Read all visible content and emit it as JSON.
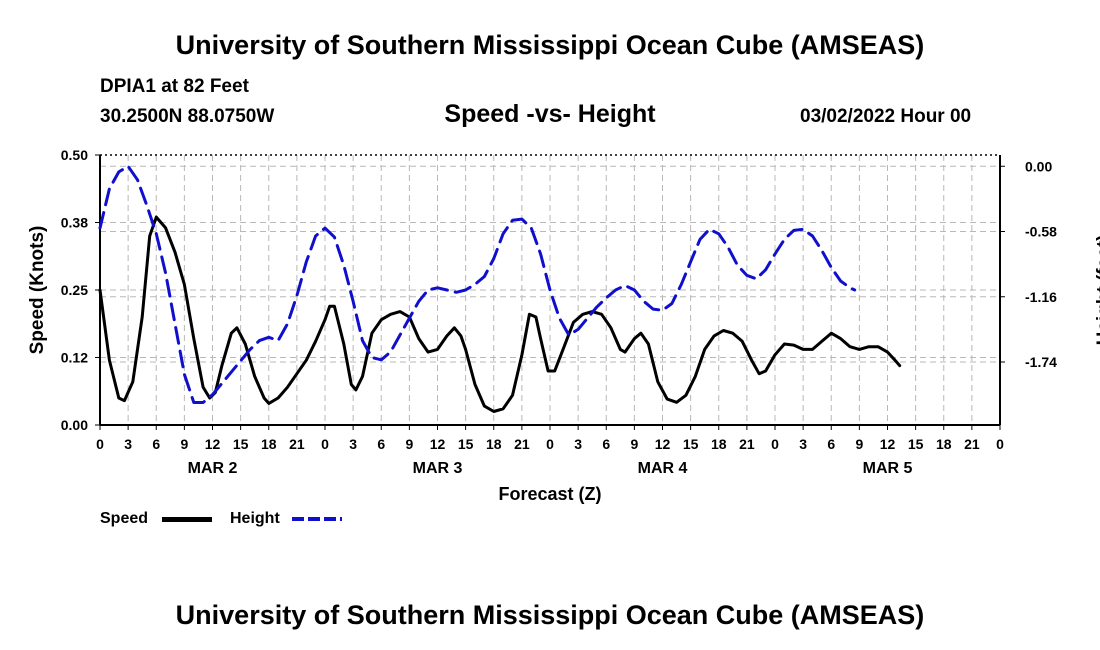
{
  "header": {
    "main_title": "University of Southern Mississippi Ocean Cube (AMSEAS)",
    "station": "DPIA1 at 82 Feet",
    "location": "30.2500N  88.0750W",
    "chart_title": "Speed -vs- Height",
    "datetime": "03/02/2022 Hour 00",
    "footer_title": "University of Southern Mississippi Ocean Cube (AMSEAS)"
  },
  "chart_data": {
    "type": "line",
    "title": "Speed -vs- Height",
    "xlabel": "Forecast (Z)",
    "ylabel_left": "Speed (Knots)",
    "ylabel_right": "Height (feet)",
    "x_range_hours": [
      0,
      96
    ],
    "x_tick_step_hours": 3,
    "x_tick_labels": [
      "0",
      "3",
      "6",
      "9",
      "12",
      "15",
      "18",
      "21",
      "0",
      "3",
      "6",
      "9",
      "12",
      "15",
      "18",
      "21",
      "0",
      "3",
      "6",
      "9",
      "12",
      "15",
      "18",
      "21",
      "0",
      "3",
      "6",
      "9",
      "12",
      "15",
      "18",
      "21",
      "0"
    ],
    "day_labels": [
      {
        "label": "MAR 2",
        "hour": 12
      },
      {
        "label": "MAR 3",
        "hour": 36
      },
      {
        "label": "MAR 4",
        "hour": 60
      },
      {
        "label": "MAR 5",
        "hour": 84
      }
    ],
    "y_left": {
      "range": [
        0,
        0.5
      ],
      "ticks": [
        0,
        0.125,
        0.25,
        0.375,
        0.5
      ],
      "tick_labels": [
        "0.00",
        "0.12",
        "0.25",
        "0.38",
        "0.50"
      ]
    },
    "y_right": {
      "range": [
        -2.3,
        0.1
      ],
      "ticks": [
        -1.74,
        -1.16,
        -0.58,
        0.0
      ],
      "tick_labels": [
        "-1.74",
        "-1.16",
        "-0.58",
        "0.00"
      ]
    },
    "grid": true,
    "series": [
      {
        "name": "Speed",
        "axis": "left",
        "color": "#000000",
        "dash": "solid",
        "points": [
          [
            0,
            0.25
          ],
          [
            1,
            0.12
          ],
          [
            2,
            0.05
          ],
          [
            2.6,
            0.045
          ],
          [
            3.5,
            0.08
          ],
          [
            4.5,
            0.2
          ],
          [
            5.3,
            0.35
          ],
          [
            6,
            0.385
          ],
          [
            7,
            0.365
          ],
          [
            8,
            0.32
          ],
          [
            9,
            0.26
          ],
          [
            10,
            0.16
          ],
          [
            11,
            0.07
          ],
          [
            11.7,
            0.05
          ],
          [
            12.3,
            0.06
          ],
          [
            13,
            0.11
          ],
          [
            14,
            0.17
          ],
          [
            14.6,
            0.18
          ],
          [
            15.5,
            0.15
          ],
          [
            16.5,
            0.09
          ],
          [
            17.5,
            0.05
          ],
          [
            18,
            0.04
          ],
          [
            19,
            0.05
          ],
          [
            20,
            0.07
          ],
          [
            21,
            0.095
          ],
          [
            22,
            0.12
          ],
          [
            23,
            0.155
          ],
          [
            24,
            0.195
          ],
          [
            24.5,
            0.22
          ],
          [
            25,
            0.22
          ],
          [
            26,
            0.15
          ],
          [
            26.8,
            0.075
          ],
          [
            27.3,
            0.065
          ],
          [
            28,
            0.09
          ],
          [
            29,
            0.17
          ],
          [
            30,
            0.195
          ],
          [
            31,
            0.205
          ],
          [
            32,
            0.21
          ],
          [
            33,
            0.2
          ],
          [
            34,
            0.16
          ],
          [
            35,
            0.135
          ],
          [
            36,
            0.14
          ],
          [
            37,
            0.165
          ],
          [
            37.8,
            0.18
          ],
          [
            38.5,
            0.165
          ],
          [
            39,
            0.14
          ],
          [
            40,
            0.075
          ],
          [
            41,
            0.035
          ],
          [
            42,
            0.025
          ],
          [
            43,
            0.03
          ],
          [
            44,
            0.055
          ],
          [
            45,
            0.13
          ],
          [
            45.8,
            0.205
          ],
          [
            46.5,
            0.2
          ],
          [
            47,
            0.16
          ],
          [
            47.8,
            0.1
          ],
          [
            48.5,
            0.1
          ],
          [
            49.5,
            0.145
          ],
          [
            50.5,
            0.19
          ],
          [
            51.5,
            0.205
          ],
          [
            52.5,
            0.21
          ],
          [
            53.5,
            0.205
          ],
          [
            54.5,
            0.18
          ],
          [
            55.5,
            0.14
          ],
          [
            56,
            0.135
          ],
          [
            57,
            0.16
          ],
          [
            57.7,
            0.17
          ],
          [
            58.5,
            0.15
          ],
          [
            59.5,
            0.08
          ],
          [
            60.5,
            0.048
          ],
          [
            61.5,
            0.042
          ],
          [
            62.5,
            0.055
          ],
          [
            63.5,
            0.09
          ],
          [
            64.5,
            0.14
          ],
          [
            65.5,
            0.165
          ],
          [
            66.5,
            0.175
          ],
          [
            67.5,
            0.17
          ],
          [
            68.5,
            0.155
          ],
          [
            69.5,
            0.12
          ],
          [
            70.3,
            0.095
          ],
          [
            71,
            0.1
          ],
          [
            72,
            0.13
          ],
          [
            73,
            0.15
          ],
          [
            74,
            0.148
          ],
          [
            75,
            0.14
          ],
          [
            76,
            0.14
          ],
          [
            77,
            0.155
          ],
          [
            78,
            0.17
          ],
          [
            79,
            0.16
          ],
          [
            80,
            0.145
          ],
          [
            81,
            0.14
          ],
          [
            82,
            0.145
          ],
          [
            83,
            0.145
          ],
          [
            84,
            0.135
          ],
          [
            84.8,
            0.12
          ],
          [
            85.3,
            0.11
          ]
        ]
      },
      {
        "name": "Height",
        "axis": "right",
        "color": "#1010cc",
        "dash": "dashed",
        "points": [
          [
            0,
            -0.55
          ],
          [
            1,
            -0.2
          ],
          [
            2,
            -0.05
          ],
          [
            3,
            0.0
          ],
          [
            4,
            -0.12
          ],
          [
            5,
            -0.35
          ],
          [
            6,
            -0.6
          ],
          [
            7,
            -0.95
          ],
          [
            8,
            -1.4
          ],
          [
            9,
            -1.85
          ],
          [
            10,
            -2.1
          ],
          [
            11,
            -2.1
          ],
          [
            12,
            -2.03
          ],
          [
            13,
            -1.93
          ],
          [
            14,
            -1.83
          ],
          [
            15,
            -1.73
          ],
          [
            16,
            -1.63
          ],
          [
            17,
            -1.55
          ],
          [
            18,
            -1.52
          ],
          [
            19,
            -1.55
          ],
          [
            20,
            -1.4
          ],
          [
            21,
            -1.15
          ],
          [
            22,
            -0.85
          ],
          [
            23,
            -0.62
          ],
          [
            24,
            -0.55
          ],
          [
            25,
            -0.63
          ],
          [
            26,
            -0.88
          ],
          [
            27,
            -1.2
          ],
          [
            28,
            -1.55
          ],
          [
            29,
            -1.7
          ],
          [
            30,
            -1.72
          ],
          [
            31,
            -1.65
          ],
          [
            32,
            -1.5
          ],
          [
            33,
            -1.35
          ],
          [
            34,
            -1.2
          ],
          [
            35,
            -1.1
          ],
          [
            36,
            -1.08
          ],
          [
            37,
            -1.1
          ],
          [
            38,
            -1.12
          ],
          [
            39,
            -1.1
          ],
          [
            40,
            -1.05
          ],
          [
            41,
            -0.98
          ],
          [
            42,
            -0.82
          ],
          [
            43,
            -0.6
          ],
          [
            44,
            -0.48
          ],
          [
            45,
            -0.47
          ],
          [
            46,
            -0.55
          ],
          [
            47,
            -0.78
          ],
          [
            48,
            -1.1
          ],
          [
            49,
            -1.35
          ],
          [
            50,
            -1.5
          ],
          [
            51,
            -1.45
          ],
          [
            52,
            -1.35
          ],
          [
            53,
            -1.25
          ],
          [
            54,
            -1.17
          ],
          [
            55,
            -1.1
          ],
          [
            56,
            -1.06
          ],
          [
            57,
            -1.1
          ],
          [
            58,
            -1.2
          ],
          [
            59,
            -1.27
          ],
          [
            60,
            -1.28
          ],
          [
            61,
            -1.22
          ],
          [
            62,
            -1.05
          ],
          [
            63,
            -0.85
          ],
          [
            64,
            -0.65
          ],
          [
            65,
            -0.56
          ],
          [
            66,
            -0.6
          ],
          [
            67,
            -0.72
          ],
          [
            68,
            -0.88
          ],
          [
            69,
            -0.97
          ],
          [
            70,
            -1.0
          ],
          [
            71,
            -0.92
          ],
          [
            72,
            -0.78
          ],
          [
            73,
            -0.65
          ],
          [
            74,
            -0.57
          ],
          [
            75,
            -0.56
          ],
          [
            76,
            -0.62
          ],
          [
            77,
            -0.75
          ],
          [
            78,
            -0.9
          ],
          [
            79,
            -1.02
          ],
          [
            80,
            -1.08
          ],
          [
            80.5,
            -1.1
          ]
        ]
      }
    ]
  },
  "legend": {
    "speed_label": "Speed",
    "height_label": "Height",
    "speed_color": "#000000",
    "height_color": "#1010cc"
  }
}
